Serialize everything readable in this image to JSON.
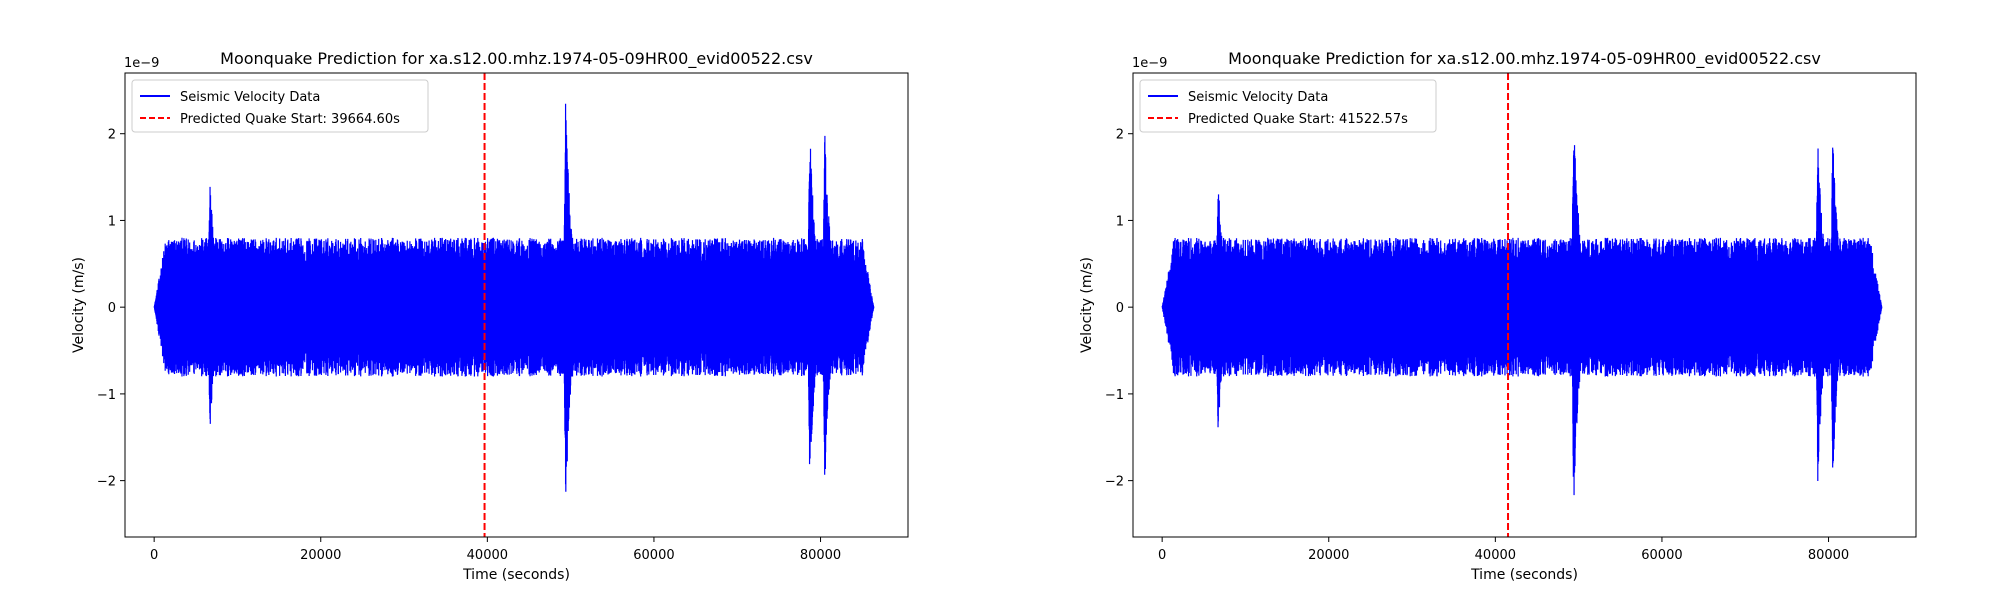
{
  "chart_data": [
    {
      "type": "line",
      "title": "Moonquake Prediction for xa.s12.00.mhz.1974-05-09HR00_evid00522.csv",
      "xlabel": "Time (seconds)",
      "ylabel": "Velocity (m/s)",
      "y_offset_label": "1e−9",
      "xlim": [
        -3500,
        90500
      ],
      "ylim": [
        -2.65e-09,
        2.7e-09
      ],
      "x_ticks": [
        0,
        20000,
        40000,
        60000,
        80000
      ],
      "x_tick_labels": [
        "0",
        "20000",
        "40000",
        "60000",
        "80000"
      ],
      "y_ticks": [
        -2e-09,
        -1e-09,
        0,
        1e-09,
        2e-09
      ],
      "y_tick_labels": [
        "−2",
        "−1",
        "0",
        "1",
        "2"
      ],
      "grid": false,
      "legend_position": "upper-left",
      "series": [
        {
          "name": "Seismic Velocity Data",
          "style": "solid",
          "color": "#0000ff",
          "x_range": [
            0,
            86400
          ],
          "noise_amplitude": 8e-10,
          "bursts": [
            {
              "x": 6700,
              "peak_pos": 1.55e-09,
              "peak_neg": -1.5e-09
            },
            {
              "x": 49400,
              "peak_pos": 2.45e-09,
              "peak_neg": -2.4e-09
            },
            {
              "x": 78700,
              "peak_pos": 2.15e-09,
              "peak_neg": -2.15e-09
            },
            {
              "x": 80500,
              "peak_pos": 2.15e-09,
              "peak_neg": -2.1e-09
            }
          ]
        },
        {
          "name": "Predicted Quake Start: 39664.60s",
          "style": "dashed",
          "color": "#ff0000",
          "x": 39664.6
        }
      ]
    },
    {
      "type": "line",
      "title": "Moonquake Prediction for xa.s12.00.mhz.1974-05-09HR00_evid00522.csv",
      "xlabel": "Time (seconds)",
      "ylabel": "Velocity (m/s)",
      "y_offset_label": "1e−9",
      "xlim": [
        -3500,
        90500
      ],
      "ylim": [
        -2.65e-09,
        2.7e-09
      ],
      "x_ticks": [
        0,
        20000,
        40000,
        60000,
        80000
      ],
      "x_tick_labels": [
        "0",
        "20000",
        "40000",
        "60000",
        "80000"
      ],
      "y_ticks": [
        -2e-09,
        -1e-09,
        0,
        1e-09,
        2e-09
      ],
      "y_tick_labels": [
        "−2",
        "−1",
        "0",
        "1",
        "2"
      ],
      "grid": false,
      "legend_position": "upper-left",
      "series": [
        {
          "name": "Seismic Velocity Data",
          "style": "solid",
          "color": "#0000ff",
          "x_range": [
            0,
            86400
          ],
          "noise_amplitude": 8e-10,
          "bursts": [
            {
              "x": 6700,
              "peak_pos": 1.55e-09,
              "peak_neg": -1.5e-09
            },
            {
              "x": 49400,
              "peak_pos": 2.45e-09,
              "peak_neg": -2.4e-09
            },
            {
              "x": 78700,
              "peak_pos": 2.15e-09,
              "peak_neg": -2.15e-09
            },
            {
              "x": 80500,
              "peak_pos": 2.15e-09,
              "peak_neg": -2.1e-09
            }
          ]
        },
        {
          "name": "Predicted Quake Start: 41522.57s",
          "style": "dashed",
          "color": "#ff0000",
          "x": 41522.57
        }
      ]
    }
  ]
}
